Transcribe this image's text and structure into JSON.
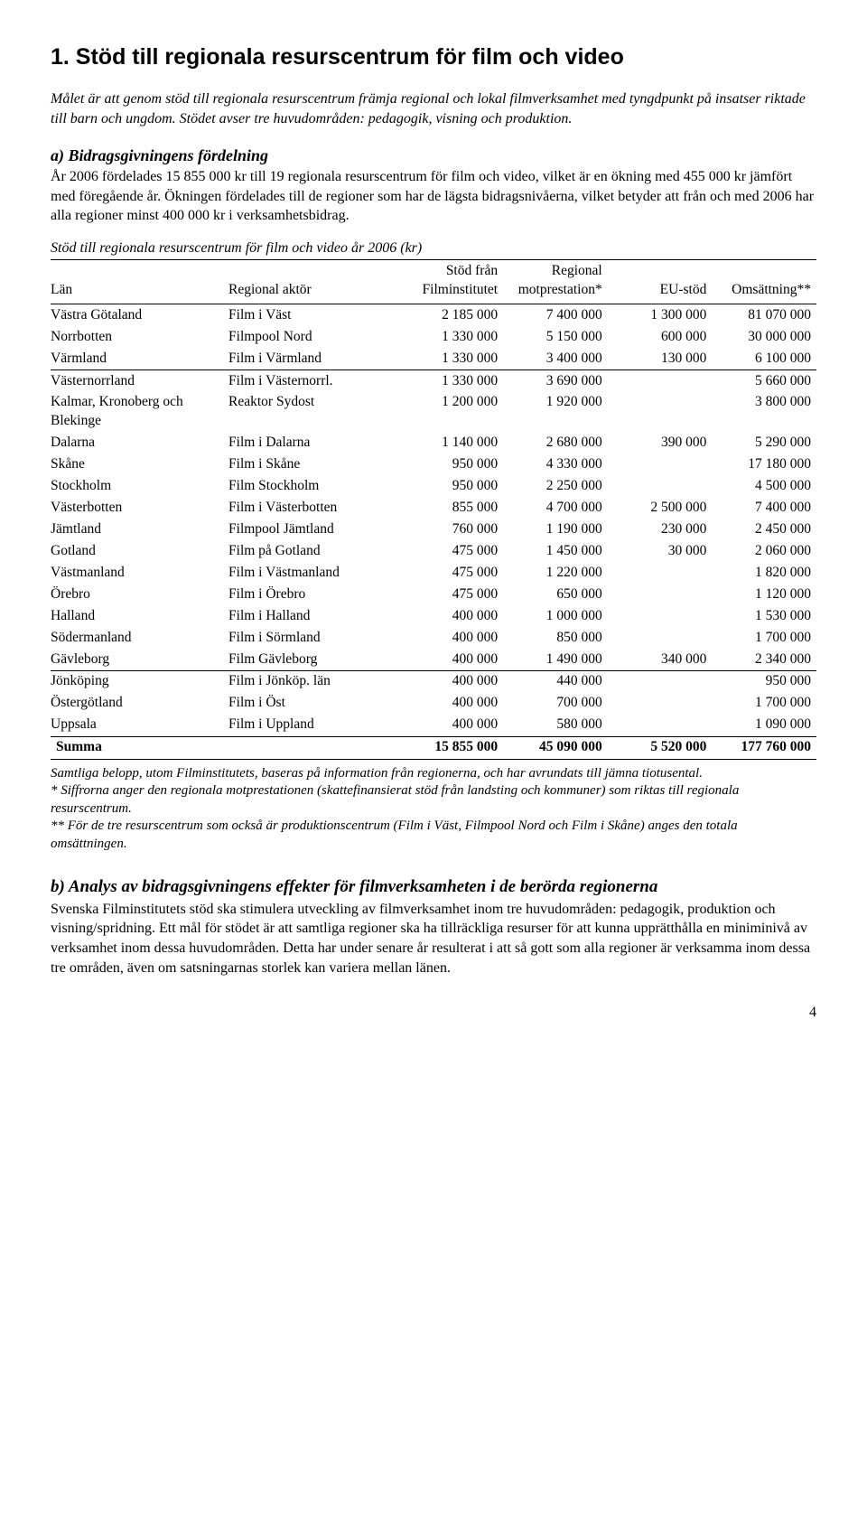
{
  "heading": "1. Stöd till regionala resurscentrum för film och video",
  "intro": "Målet är att genom stöd till regionala resurscentrum främja regional och lokal filmverksamhet med tyngdpunkt på insatser riktade till barn och ungdom. Stödet avser tre huvudområden: pedagogik, visning och produktion.",
  "subheading_a": "a) Bidragsgivningens fördelning",
  "para_a": "År 2006 fördelades 15 855 000 kr till 19 regionala resurscentrum för film och video, vilket är en ökning med 455 000 kr jämfört med föregående år. Ökningen fördelades till de regioner som har de lägsta bidragsnivåerna, vilket betyder att från och med 2006 har alla regioner minst 400 000 kr i verksamhetsbidrag.",
  "table_caption": "Stöd till regionala resurscentrum för film och video år 2006 (kr)",
  "columns": {
    "lan": "Län",
    "aktor": "Regional aktör",
    "stod_line1": "Stöd från",
    "stod_line2": "Filminstitutet",
    "mot_line1": "Regional",
    "mot_line2": "motprestation*",
    "eu": "EU-stöd",
    "oms": "Omsättning**"
  },
  "groups": [
    [
      {
        "lan": "Västra Götaland",
        "aktor": "Film i Väst",
        "stod": "2 185 000",
        "mot": "7 400 000",
        "eu": "1 300 000",
        "oms": "81 070 000"
      },
      {
        "lan": "Norrbotten",
        "aktor": "Filmpool Nord",
        "stod": "1 330 000",
        "mot": "5 150 000",
        "eu": "600 000",
        "oms": "30 000 000"
      },
      {
        "lan": "Värmland",
        "aktor": "Film i Värmland",
        "stod": "1 330 000",
        "mot": "3 400 000",
        "eu": "130 000",
        "oms": "6 100 000"
      }
    ],
    [
      {
        "lan": "Västernorrland",
        "aktor": "Film i Västernorrl.",
        "stod": "1 330 000",
        "mot": "3 690 000",
        "eu": "",
        "oms": "5 660 000"
      },
      {
        "lan": "Kalmar, Kronoberg och Blekinge",
        "aktor": "Reaktor Sydost",
        "stod": "1 200 000",
        "mot": "1 920 000",
        "eu": "",
        "oms": "3 800 000"
      },
      {
        "lan": "Dalarna",
        "aktor": "Film i Dalarna",
        "stod": "1 140 000",
        "mot": "2 680 000",
        "eu": "390 000",
        "oms": "5 290 000"
      },
      {
        "lan": "Skåne",
        "aktor": "Film i Skåne",
        "stod": "950 000",
        "mot": "4 330 000",
        "eu": "",
        "oms": "17 180 000"
      },
      {
        "lan": "Stockholm",
        "aktor": "Film Stockholm",
        "stod": "950 000",
        "mot": "2 250 000",
        "eu": "",
        "oms": "4 500 000"
      },
      {
        "lan": "Västerbotten",
        "aktor": "Film i Västerbotten",
        "stod": "855 000",
        "mot": "4 700 000",
        "eu": "2 500 000",
        "oms": "7 400 000"
      },
      {
        "lan": "Jämtland",
        "aktor": "Filmpool Jämtland",
        "stod": "760 000",
        "mot": "1 190 000",
        "eu": "230 000",
        "oms": "2 450 000"
      },
      {
        "lan": "Gotland",
        "aktor": "Film på Gotland",
        "stod": "475 000",
        "mot": "1 450 000",
        "eu": "30 000",
        "oms": "2 060 000"
      },
      {
        "lan": "Västmanland",
        "aktor": "Film i Västmanland",
        "stod": "475 000",
        "mot": "1 220 000",
        "eu": "",
        "oms": "1 820 000"
      },
      {
        "lan": "Örebro",
        "aktor": "Film i Örebro",
        "stod": "475 000",
        "mot": "650 000",
        "eu": "",
        "oms": "1 120 000"
      },
      {
        "lan": "Halland",
        "aktor": "Film i Halland",
        "stod": "400 000",
        "mot": "1 000 000",
        "eu": "",
        "oms": "1 530 000"
      },
      {
        "lan": "Södermanland",
        "aktor": "Film i Sörmland",
        "stod": "400 000",
        "mot": "850 000",
        "eu": "",
        "oms": "1 700 000"
      },
      {
        "lan": "Gävleborg",
        "aktor": "Film Gävleborg",
        "stod": "400 000",
        "mot": "1 490 000",
        "eu": "340 000",
        "oms": "2 340 000"
      }
    ],
    [
      {
        "lan": "Jönköping",
        "aktor": "Film i Jönköp. län",
        "stod": "400 000",
        "mot": "440 000",
        "eu": "",
        "oms": "950 000"
      },
      {
        "lan": "Östergötland",
        "aktor": "Film i Öst",
        "stod": "400 000",
        "mot": "700 000",
        "eu": "",
        "oms": "1 700 000"
      },
      {
        "lan": "Uppsala",
        "aktor": "Film i Uppland",
        "stod": "400 000",
        "mot": "580 000",
        "eu": "",
        "oms": "1 090 000"
      }
    ]
  ],
  "summa": {
    "label": "Summa",
    "stod": "15 855 000",
    "mot": "45 090 000",
    "eu": "5 520 000",
    "oms": "177 760 000"
  },
  "footnotes": {
    "f1": "Samtliga belopp, utom Filminstitutets, baseras på information från regionerna, och har avrundats till jämna tiotusental.",
    "f2": "* Siffrorna anger den regionala motprestationen (skattefinansierat stöd från landsting och kommuner) som riktas till regionala resurscentrum.",
    "f3": "** För de tre resurscentrum som också är produktionscentrum (Film i Väst, Filmpool Nord och Film i Skåne) anges den totala omsättningen."
  },
  "subheading_b": "b) Analys av bidragsgivningens effekter för filmverksamheten i de berörda regionerna",
  "para_b": "Svenska Filminstitutets stöd ska stimulera utveckling av filmverksamhet inom tre huvudområden: pedagogik, produktion och visning/spridning. Ett mål för stödet är att samtliga regioner ska ha tillräckliga resurser för att kunna upprätthålla en miniminivå av verksamhet inom dessa huvudområden. Detta har under senare år resulterat i att så gott som alla regioner är verksamma inom dessa tre områden, även om satsningarnas storlek kan variera mellan länen.",
  "page_number": "4"
}
